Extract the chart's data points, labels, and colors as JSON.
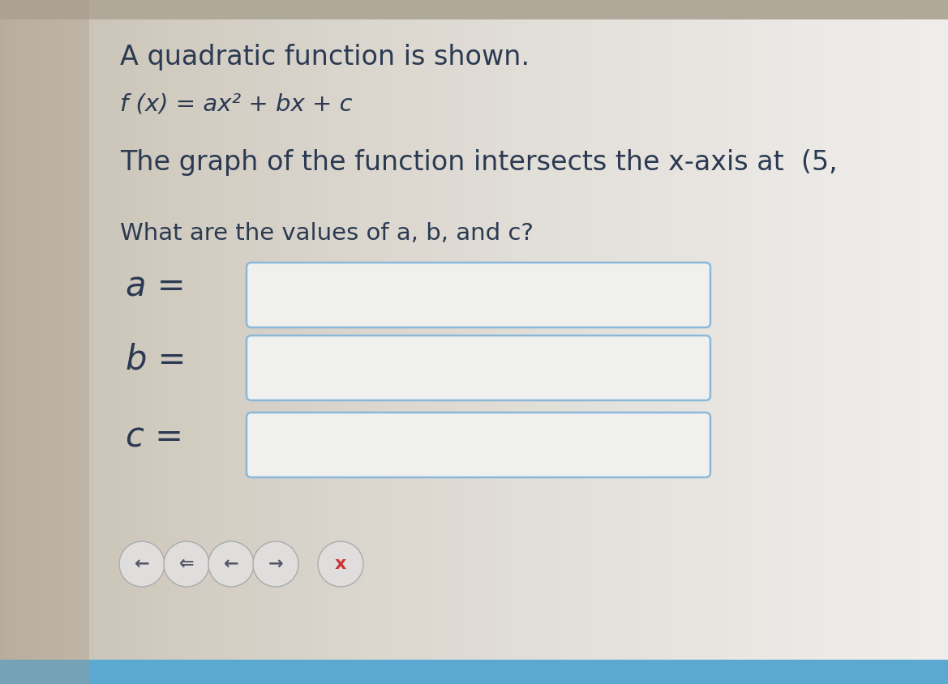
{
  "bg_left_color": "#c8c0b0",
  "bg_right_color": "#e8e8e6",
  "bg_center_color": "#dedad4",
  "title_text": "A quadratic function is shown.",
  "formula_text": "f (x) = ax² + bx + c",
  "intersect_text": "The graph of the function intersects the x-axis at  (5, ",
  "question_text": "What are the values of a, b, and c?",
  "label_a": "a =",
  "label_b": "b =",
  "label_c": "c =",
  "text_color": "#2b3a52",
  "box_border_color": "#8ab8d8",
  "box_fill_color": "#f0f0ef",
  "title_fontsize": 24,
  "formula_fontsize": 21,
  "intersect_fontsize": 24,
  "question_fontsize": 21,
  "label_fontsize": 30,
  "btn_size": 30
}
